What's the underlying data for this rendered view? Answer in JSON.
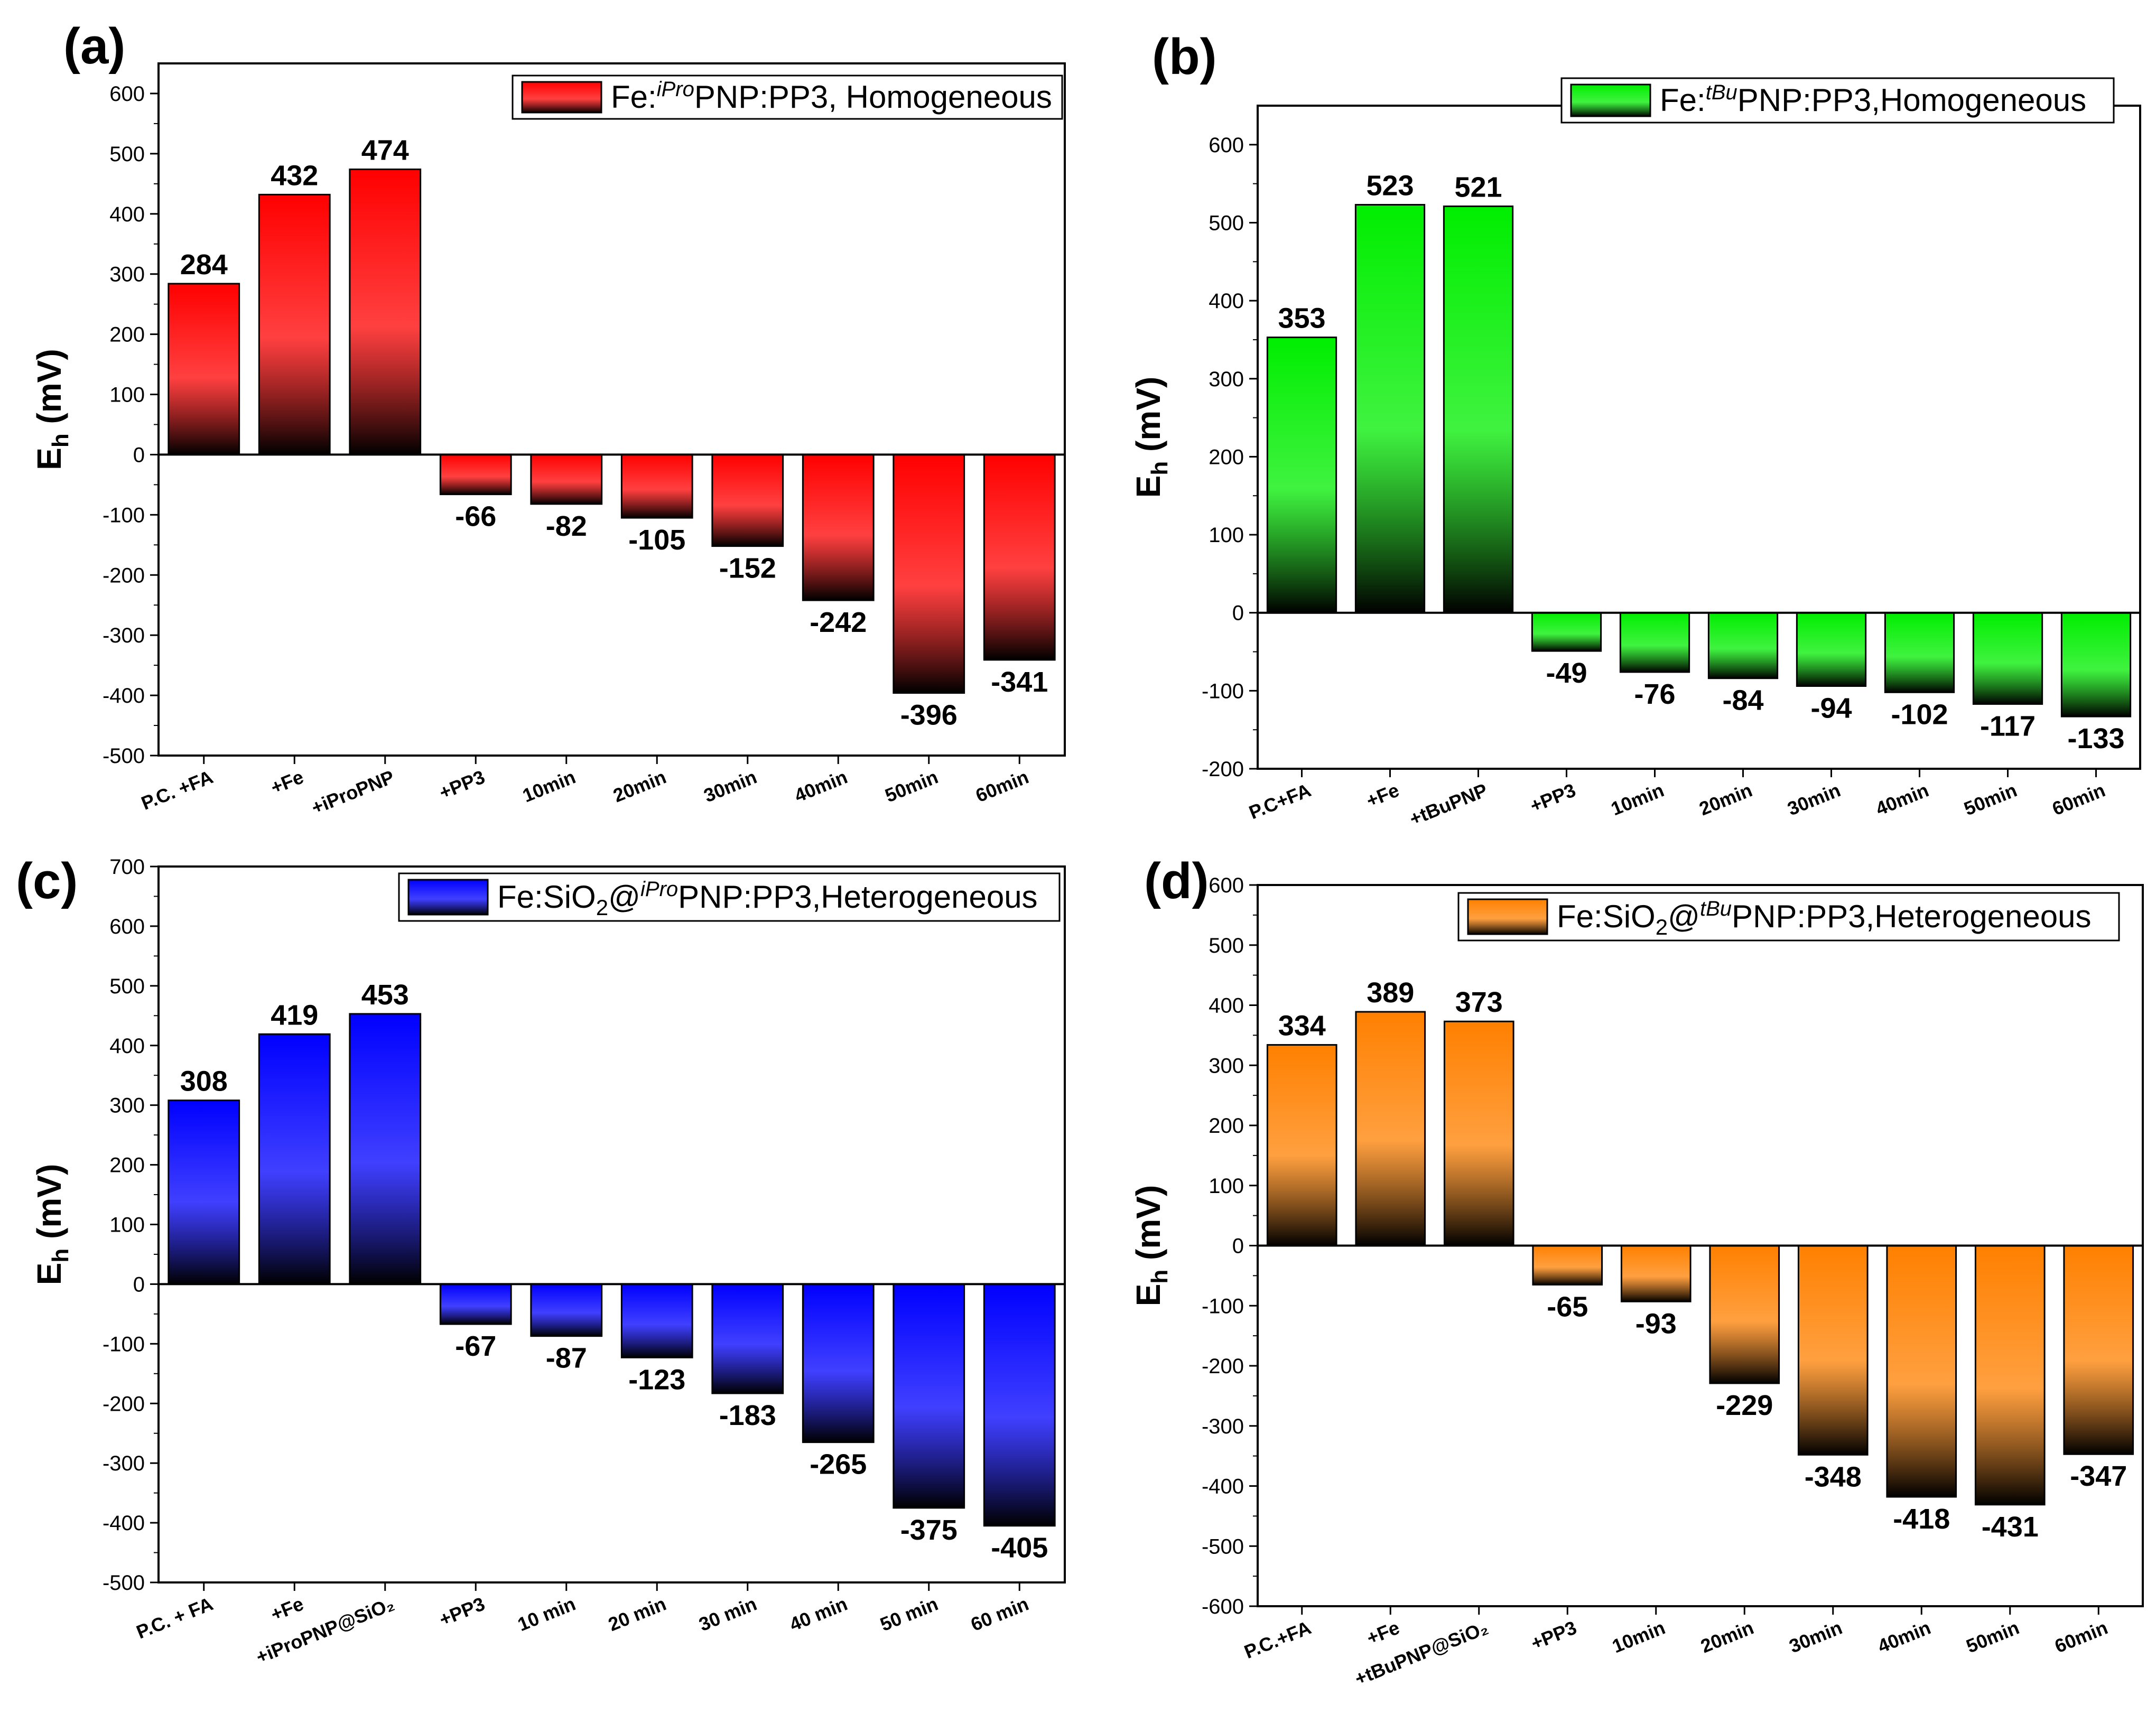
{
  "chart_data": [
    {
      "panel": "(a)",
      "type": "bar",
      "legend": {
        "prefix": "Fe:",
        "sup": "iPro",
        "suffix": "PNP:PP3, Homogeneous"
      },
      "color": "#ff0000",
      "ylabel": {
        "main": "E",
        "sub": "h",
        "unit": " (mV)"
      },
      "ylim": [
        -500,
        650
      ],
      "yticks": [
        -500,
        -400,
        -300,
        -200,
        -100,
        0,
        100,
        200,
        300,
        400,
        500,
        600
      ],
      "categories": [
        "P.C. +FA",
        "+Fe",
        "+iProPNP",
        "+PP3",
        "10min",
        "20min",
        "30min",
        "40min",
        "50min",
        "60min"
      ],
      "values": [
        284,
        432,
        474,
        -66,
        -82,
        -105,
        -152,
        -242,
        -396,
        -341
      ]
    },
    {
      "panel": "(b)",
      "type": "bar",
      "legend": {
        "prefix": "Fe:",
        "sup": "tBu",
        "suffix": "PNP:PP3,Homogeneous"
      },
      "color": "#00ee00",
      "ylabel": {
        "main": "E",
        "sub": "h",
        "unit": " (mV)"
      },
      "ylim": [
        -200,
        650
      ],
      "yticks": [
        -200,
        -100,
        0,
        100,
        200,
        300,
        400,
        500,
        600
      ],
      "categories": [
        "P.C+FA",
        "+Fe",
        "+tBuPNP",
        "+PP3",
        "10min",
        "20min",
        "30min",
        "40min",
        "50min",
        "60min"
      ],
      "values": [
        353,
        523,
        521,
        -49,
        -76,
        -84,
        -94,
        -102,
        -117,
        -133
      ]
    },
    {
      "panel": "(c)",
      "type": "bar",
      "legend": {
        "prefix": "Fe:SiO",
        "sub": "2",
        "mid": "@",
        "sup": "iPro",
        "suffix": "PNP:PP3,Heterogeneous"
      },
      "color": "#0000ff",
      "ylabel": {
        "main": "E",
        "sub": "h",
        "unit": " (mV)"
      },
      "ylim": [
        -500,
        700
      ],
      "yticks": [
        -500,
        -400,
        -300,
        -200,
        -100,
        0,
        100,
        200,
        300,
        400,
        500,
        600,
        700
      ],
      "categories": [
        "P.C. + FA",
        "+Fe",
        "+iProPNP@SiO₂",
        "+PP3",
        "10 min",
        "20 min",
        "30 min",
        "40 min",
        "50 min",
        "60 min"
      ],
      "values": [
        308,
        419,
        453,
        -67,
        -87,
        -123,
        -183,
        -265,
        -375,
        -405
      ]
    },
    {
      "panel": "(d)",
      "type": "bar",
      "legend": {
        "prefix": "Fe:SiO",
        "sub": "2",
        "mid": "@",
        "sup": "tBu",
        "suffix": "PNP:PP3,Heterogeneous"
      },
      "color": "#ff8000",
      "ylabel": {
        "main": "E",
        "sub": "h",
        "unit": " (mV)"
      },
      "ylim": [
        -600,
        600
      ],
      "yticks": [
        -600,
        -500,
        -400,
        -300,
        -200,
        -100,
        0,
        100,
        200,
        300,
        400,
        500,
        600
      ],
      "categories": [
        "P.C.+FA",
        "+Fe",
        "+tBuPNP@SiO₂",
        "+PP3",
        "10min",
        "20min",
        "30min",
        "40min",
        "50min",
        "60min"
      ],
      "values": [
        334,
        389,
        373,
        -65,
        -93,
        -229,
        -348,
        -418,
        -431,
        -347
      ]
    }
  ]
}
